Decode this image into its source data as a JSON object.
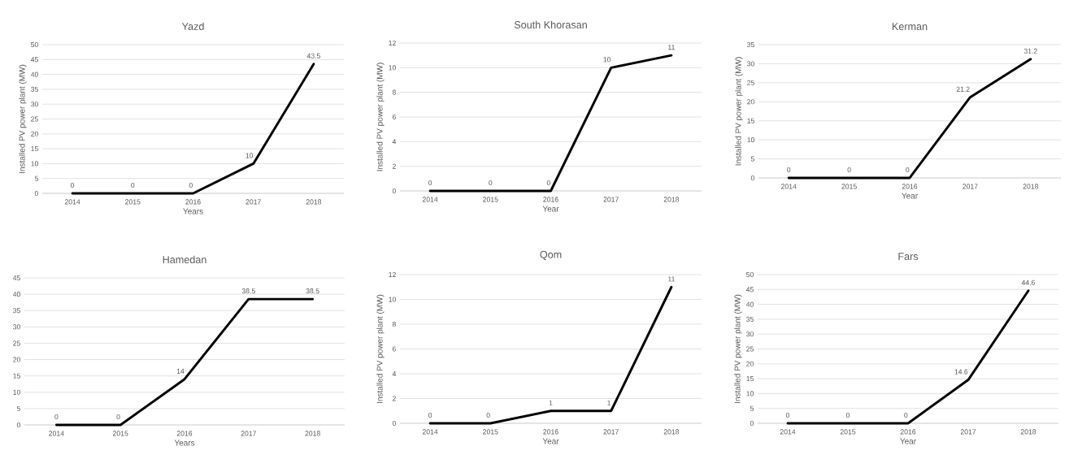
{
  "chart_data": [
    {
      "type": "line",
      "title": "Yazd",
      "xlabel": "Years",
      "ylabel": "Installed PV power plant (MW)",
      "categories": [
        "2014",
        "2015",
        "2016",
        "2017",
        "2018"
      ],
      "series": [
        {
          "color": "#000000",
          "values": [
            0,
            0,
            0,
            10,
            43.5
          ]
        }
      ],
      "ylim": [
        0,
        50
      ],
      "yticks": [
        0,
        5,
        10,
        15,
        20,
        25,
        30,
        35,
        40,
        45,
        50
      ],
      "grid": "y",
      "data_labels": true
    },
    {
      "type": "line",
      "title": "South Khorasan",
      "xlabel": "Year",
      "ylabel": "Installed PV power plant (MW)",
      "categories": [
        "2014",
        "2015",
        "2016",
        "2017",
        "2018"
      ],
      "series": [
        {
          "color": "#000000",
          "values": [
            0,
            0,
            0,
            10,
            11
          ]
        }
      ],
      "ylim": [
        0,
        12
      ],
      "yticks": [
        0,
        2,
        4,
        6,
        8,
        10,
        12
      ],
      "grid": "y",
      "data_labels": true
    },
    {
      "type": "line",
      "title": "Kerman",
      "xlabel": "Year",
      "ylabel": "Installed PV power plant (MW)",
      "categories": [
        "2014",
        "2015",
        "2016",
        "2017",
        "2018"
      ],
      "series": [
        {
          "color": "#000000",
          "values": [
            0,
            0,
            0,
            21.2,
            31.2
          ]
        }
      ],
      "ylim": [
        0,
        35
      ],
      "yticks": [
        0,
        5,
        10,
        15,
        20,
        25,
        30,
        35
      ],
      "grid": "y",
      "data_labels": true
    },
    {
      "type": "line",
      "title": "Hamedan",
      "xlabel": "Years",
      "categories": [
        "2014",
        "2015",
        "2016",
        "2017",
        "2018"
      ],
      "series": [
        {
          "color": "#000000",
          "values": [
            0,
            0,
            14,
            38.5,
            38.5
          ]
        }
      ],
      "ylim": [
        0,
        45
      ],
      "yticks": [
        0,
        5,
        10,
        15,
        20,
        25,
        30,
        35,
        40,
        45
      ],
      "grid": "y",
      "data_labels": true
    },
    {
      "type": "line",
      "title": "Qom",
      "xlabel": "Year",
      "ylabel": "Installed PV power plant (MW)",
      "categories": [
        "2014",
        "2015",
        "2016",
        "2017",
        "2018"
      ],
      "series": [
        {
          "color": "#000000",
          "values": [
            0,
            0,
            1,
            1,
            11
          ]
        }
      ],
      "ylim": [
        0,
        12
      ],
      "yticks": [
        0,
        2,
        4,
        6,
        8,
        10,
        12
      ],
      "grid": "y",
      "data_labels": true
    },
    {
      "type": "line",
      "title": "Fars",
      "xlabel": "Year",
      "ylabel": "Installed PV power plant (MW)",
      "categories": [
        "2014",
        "2015",
        "2016",
        "2017",
        "2018"
      ],
      "series": [
        {
          "color": "#000000",
          "values": [
            0,
            0,
            0,
            14.6,
            44.6
          ]
        }
      ],
      "ylim": [
        0,
        50
      ],
      "yticks": [
        0,
        5,
        10,
        15,
        20,
        25,
        30,
        35,
        40,
        45,
        50
      ],
      "grid": "y",
      "data_labels": true
    }
  ]
}
